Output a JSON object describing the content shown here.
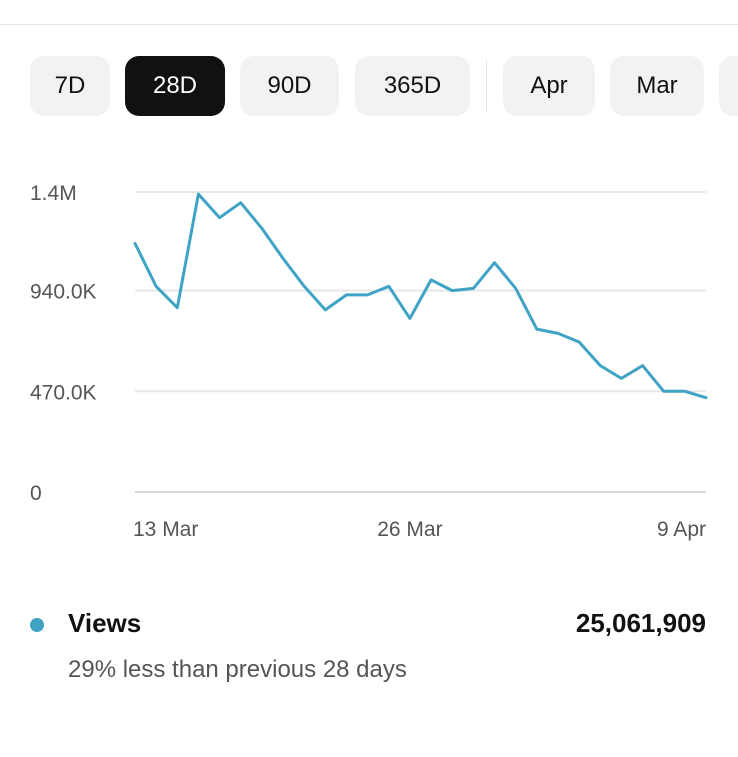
{
  "filters": {
    "chips": [
      {
        "label": "7D",
        "active": false
      },
      {
        "label": "28D",
        "active": true
      },
      {
        "label": "90D",
        "active": false
      },
      {
        "label": "365D",
        "active": false
      },
      {
        "label": "Apr",
        "active": false
      },
      {
        "label": "Mar",
        "active": false
      }
    ]
  },
  "chart_data": {
    "type": "line",
    "title": "",
    "xlabel": "",
    "ylabel": "",
    "ylim": [
      0,
      1400000
    ],
    "y_ticks": [
      {
        "value": 0,
        "label": "0"
      },
      {
        "value": 470000,
        "label": "470.0K"
      },
      {
        "value": 940000,
        "label": "940.0K"
      },
      {
        "value": 1400000,
        "label": "1.4M"
      }
    ],
    "x_ticks": [
      {
        "index": 0,
        "label": "13 Mar"
      },
      {
        "index": 13,
        "label": "26 Mar"
      },
      {
        "index": 27,
        "label": "9 Apr"
      }
    ],
    "grid": true,
    "series": [
      {
        "name": "Views",
        "color": "#3fa3c6",
        "values": [
          1160000,
          960000,
          860000,
          1390000,
          1280000,
          1350000,
          1230000,
          1090000,
          960000,
          850000,
          920000,
          920000,
          960000,
          810000,
          990000,
          940000,
          950000,
          1070000,
          950000,
          760000,
          740000,
          700000,
          590000,
          530000,
          590000,
          470000,
          470000,
          440000
        ]
      }
    ]
  },
  "legend": {
    "name": "Views",
    "color": "#3fa3c6",
    "total": "25,061,909",
    "comparison": "29% less than previous 28 days"
  }
}
